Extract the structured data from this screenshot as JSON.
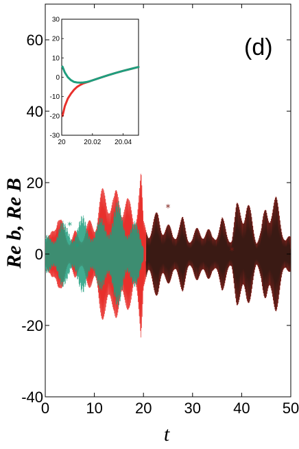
{
  "chart_data": [
    {
      "type": "line",
      "panel_label": "(d)",
      "xlabel": "t",
      "ylabel": "Re b, Re B",
      "xlim": [
        0,
        50
      ],
      "ylim": [
        -40,
        70
      ],
      "xticks": [
        "0",
        "10",
        "20",
        "30",
        "40",
        "50"
      ],
      "yticks": [
        "-40",
        "-20",
        "0",
        "20",
        "40",
        "60"
      ],
      "colors": {
        "red": "#e8302c",
        "dark": "#3a1a14",
        "teal": "#1f9e7e"
      },
      "series": [
        {
          "color": "#e8302c",
          "style": "dense oscillation",
          "envelope": [
            [
              0,
              4
            ],
            [
              1,
              6
            ],
            [
              1.5,
              10
            ],
            [
              2,
              14
            ],
            [
              2.5,
              15
            ],
            [
              3,
              11
            ],
            [
              4,
              8
            ],
            [
              5,
              5
            ],
            [
              6,
              7
            ],
            [
              7,
              6
            ],
            [
              8,
              8
            ],
            [
              9,
              10
            ],
            [
              10,
              12
            ],
            [
              11,
              18
            ],
            [
              12,
              20
            ],
            [
              13,
              24
            ],
            [
              14,
              18
            ],
            [
              15,
              20
            ],
            [
              16,
              22
            ],
            [
              17,
              16
            ],
            [
              18,
              14
            ],
            [
              19,
              23
            ],
            [
              19.5,
              26
            ],
            [
              20,
              10
            ],
            [
              21,
              9
            ],
            [
              22,
              11
            ],
            [
              23,
              13
            ],
            [
              24,
              11
            ],
            [
              25,
              9
            ],
            [
              26,
              7
            ],
            [
              27,
              10
            ],
            [
              28,
              11
            ],
            [
              29,
              7
            ],
            [
              30,
              6
            ],
            [
              31,
              8
            ],
            [
              32,
              9
            ],
            [
              33,
              8
            ],
            [
              34,
              6
            ],
            [
              35,
              9
            ],
            [
              36,
              11
            ],
            [
              37,
              8
            ],
            [
              38,
              6
            ],
            [
              39,
              15
            ],
            [
              40,
              18
            ],
            [
              41,
              17
            ],
            [
              42,
              12
            ],
            [
              43,
              6
            ],
            [
              44,
              8
            ],
            [
              45,
              16
            ],
            [
              46,
              19
            ],
            [
              47,
              17
            ],
            [
              48,
              12
            ],
            [
              49,
              6
            ],
            [
              50,
              5
            ]
          ]
        },
        {
          "color": "#1f9e7e",
          "style": "dense oscillation",
          "envelope": [
            [
              0,
              5
            ],
            [
              1,
              7
            ],
            [
              2,
              9
            ],
            [
              3,
              10
            ],
            [
              4,
              9
            ],
            [
              5,
              10
            ],
            [
              6,
              9
            ],
            [
              7,
              10
            ],
            [
              8,
              12
            ],
            [
              9,
              12
            ],
            [
              10,
              8
            ],
            [
              11,
              10
            ],
            [
              12,
              12
            ],
            [
              13,
              14
            ],
            [
              14,
              15
            ],
            [
              15,
              15
            ],
            [
              16,
              14
            ],
            [
              17,
              12
            ],
            [
              18,
              10
            ],
            [
              19,
              8
            ],
            [
              20,
              4
            ]
          ]
        }
      ],
      "markers": [
        {
          "x": 5,
          "y": 8,
          "color": "#1f9e7e"
        },
        {
          "x": 6.5,
          "y": 2,
          "color": "#1f9e7e"
        },
        {
          "x": 25,
          "y": 13,
          "color": "#7a1a14"
        },
        {
          "x": 38,
          "y": 1,
          "color": "#7a1a14"
        }
      ]
    },
    {
      "type": "line",
      "xlim": [
        20,
        20.05
      ],
      "ylim": [
        -30,
        30
      ],
      "xticks": [
        "20",
        "20.02",
        "20.04"
      ],
      "yticks": [
        "-30",
        "-20",
        "-10",
        "0",
        "10",
        "20",
        "30"
      ],
      "series": [
        {
          "color": "#e8302c",
          "x": [
            20.0005,
            20.002,
            20.004,
            20.006,
            20.008,
            20.01,
            20.012,
            20.014,
            20.016,
            20.018,
            20.02,
            20.025,
            20.03,
            20.035,
            20.04,
            20.045,
            20.05
          ],
          "y": [
            -20,
            -15,
            -11,
            -8.5,
            -6.5,
            -5,
            -4,
            -3.2,
            -2.7,
            -2.2,
            -1.6,
            -0.3,
            1,
            2.2,
            3.3,
            4.3,
            5.3
          ]
        },
        {
          "color": "#1f9e7e",
          "x": [
            20.0005,
            20.002,
            20.004,
            20.006,
            20.008,
            20.01,
            20.012,
            20.014,
            20.016,
            20.018,
            20.02,
            20.025,
            20.03,
            20.035,
            20.04,
            20.045,
            20.05
          ],
          "y": [
            5.5,
            2.5,
            0,
            -1.5,
            -2.4,
            -2.7,
            -2.8,
            -2.7,
            -2.5,
            -2.1,
            -1.6,
            -0.3,
            1,
            2.2,
            3.3,
            4.3,
            5.3
          ]
        }
      ]
    }
  ]
}
